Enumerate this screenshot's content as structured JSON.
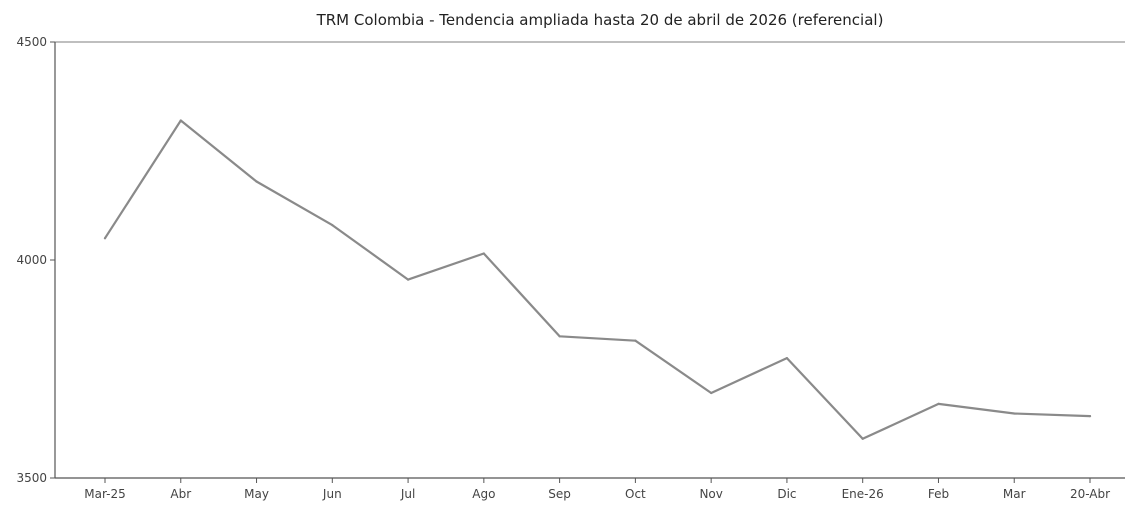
{
  "chart_data": {
    "type": "line",
    "title": "TRM Colombia - Tendencia ampliada hasta 20 de abril de 2026 (referencial)",
    "xlabel": "",
    "ylabel": "",
    "categories": [
      "Mar-25",
      "Abr",
      "May",
      "Jun",
      "Jul",
      "Ago",
      "Sep",
      "Oct",
      "Nov",
      "Dic",
      "Ene-26",
      "Feb",
      "Mar",
      "20-Abr"
    ],
    "series": [
      {
        "values": [
          4050,
          4320,
          4180,
          4080,
          3955,
          4015,
          3825,
          3815,
          3695,
          3775,
          3590,
          3670,
          3648,
          3642
        ]
      }
    ],
    "ylim": [
      3500,
      4500
    ],
    "yticks": [
      "3500",
      "4000",
      "4500"
    ],
    "grid": false,
    "legend": "none",
    "line_color": "#8a8a8a"
  }
}
